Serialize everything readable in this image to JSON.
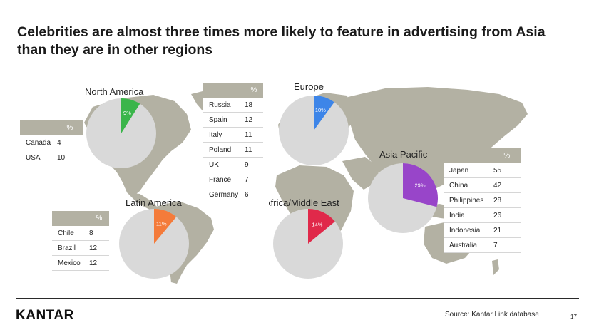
{
  "title": "Celebrities are almost three times more likely to feature in advertising from Asia than they are in other regions",
  "footer": {
    "logo": "KANTAR",
    "source": "Source: Kantar Link database",
    "page": "17"
  },
  "colors": {
    "map": "#b3b1a3",
    "pie_background": "#d9d9d9",
    "north_america": "#3ab54a",
    "europe": "#3d85e8",
    "latin_america": "#f47b3a",
    "africa_middle_east": "#e0294a",
    "asia_pacific": "#9845c9",
    "table_header": "#b3b1a3"
  },
  "chart_data": {
    "type": "pie",
    "value_unit": "%",
    "regions": [
      {
        "key": "north_america",
        "name": "North America",
        "value": 9,
        "label": "9%",
        "color": "#3ab54a"
      },
      {
        "key": "europe",
        "name": "Europe",
        "value": 10,
        "label": "10%",
        "color": "#3d85e8"
      },
      {
        "key": "latin_america",
        "name": "Latin America",
        "value": 11,
        "label": "11%",
        "color": "#f47b3a"
      },
      {
        "key": "africa_middle_east",
        "name": "Africa/Middle East",
        "value": 14,
        "label": "14%",
        "color": "#e0294a"
      },
      {
        "key": "asia_pacific",
        "name": "Asia Pacific",
        "value": 29,
        "label": "29%",
        "color": "#9845c9"
      }
    ]
  },
  "tables": {
    "north_america": {
      "header": "%",
      "rows": [
        {
          "country": "Canada",
          "value": "4"
        },
        {
          "country": "USA",
          "value": "10"
        }
      ]
    },
    "europe": {
      "header": "%",
      "rows": [
        {
          "country": "Russia",
          "value": "18"
        },
        {
          "country": "Spain",
          "value": "12"
        },
        {
          "country": "Italy",
          "value": "11"
        },
        {
          "country": "Poland",
          "value": "11"
        },
        {
          "country": "UK",
          "value": "9"
        },
        {
          "country": "France",
          "value": "7"
        },
        {
          "country": "Germany",
          "value": "6"
        }
      ]
    },
    "latin_america": {
      "header": "%",
      "rows": [
        {
          "country": "Chile",
          "value": "8"
        },
        {
          "country": "Brazil",
          "value": "12"
        },
        {
          "country": "Mexico",
          "value": "12"
        }
      ]
    },
    "asia_pacific": {
      "header": "%",
      "rows": [
        {
          "country": "Japan",
          "value": "55"
        },
        {
          "country": "China",
          "value": "42"
        },
        {
          "country": "Philippines",
          "value": "28"
        },
        {
          "country": "India",
          "value": "26"
        },
        {
          "country": "Indonesia",
          "value": "21"
        },
        {
          "country": "Australia",
          "value": "7"
        }
      ]
    }
  }
}
